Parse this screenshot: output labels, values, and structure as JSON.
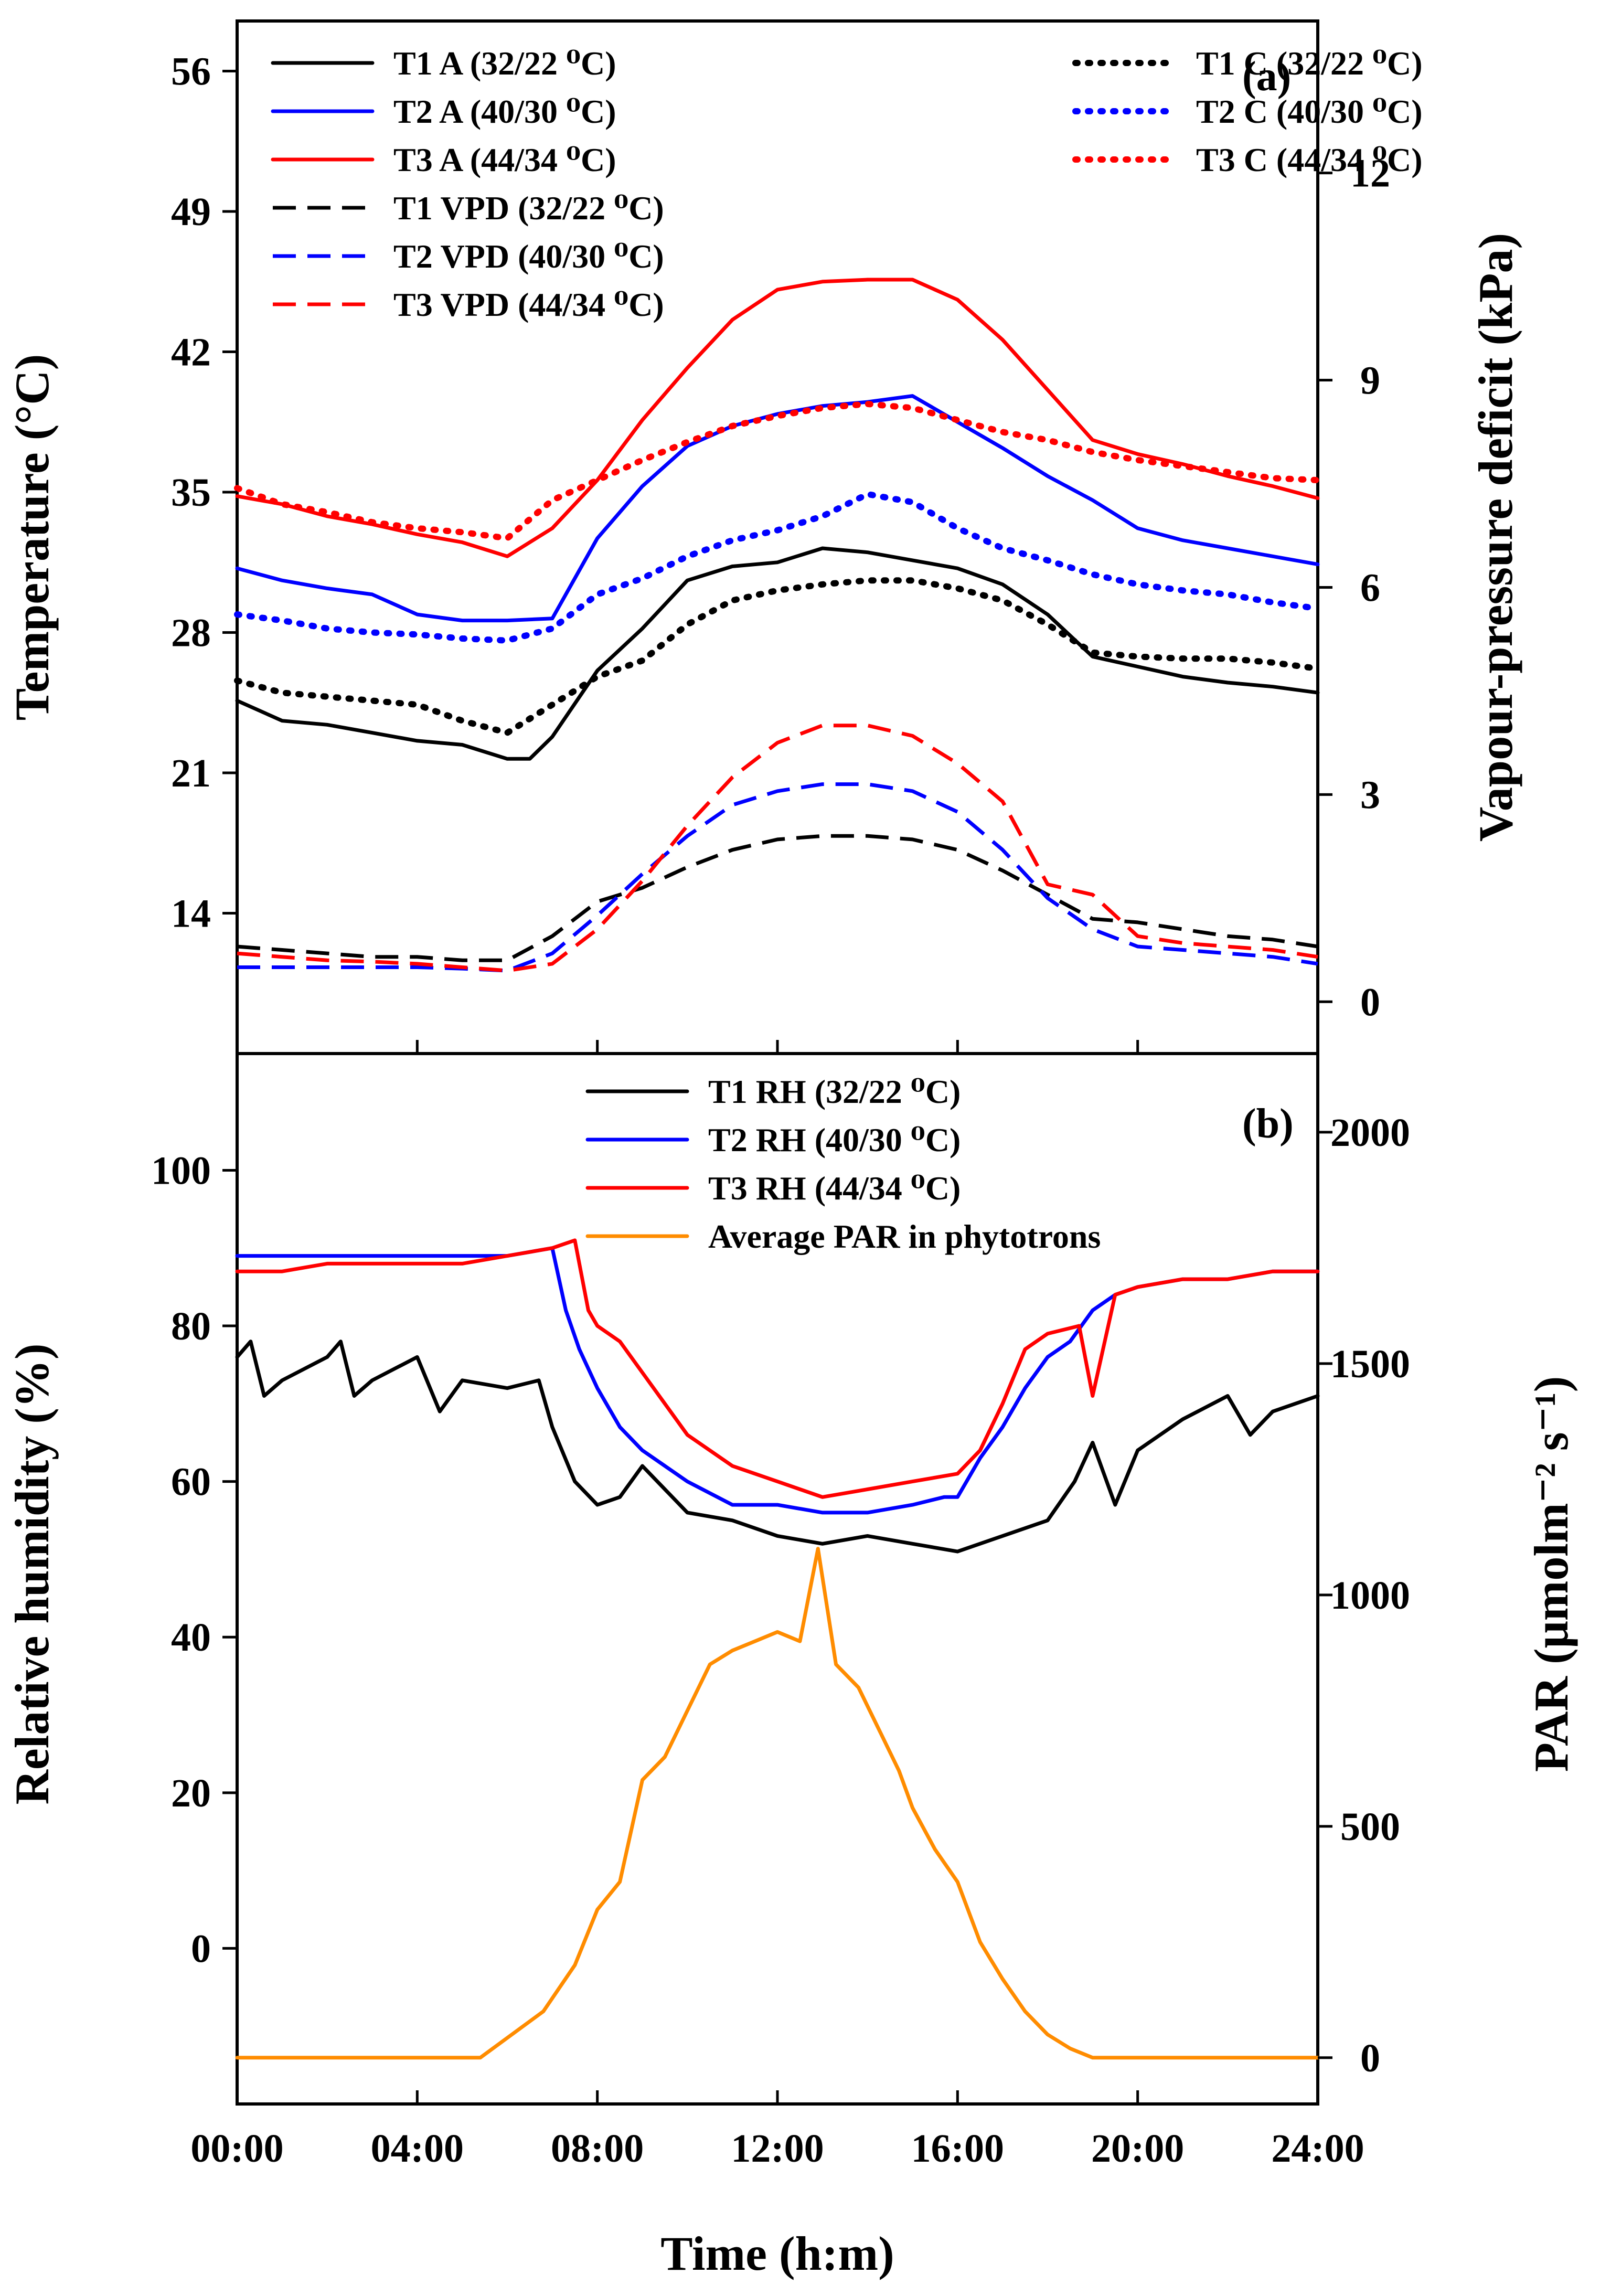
{
  "figure": {
    "x_axis_title": "Time (h:m)"
  },
  "chart_data": [
    {
      "panel_label": "(a)",
      "type": "line",
      "ylabel": "Temperature (°C)",
      "ylabel_right": "Vapour-pressure deficit (kPa)",
      "xlabel": "Time (h:m)",
      "x_ticks": [
        "00:00",
        "04:00",
        "08:00",
        "12:00",
        "16:00",
        "20:00",
        "24:00"
      ],
      "xlim": [
        0,
        24
      ],
      "ylim": [
        7,
        58.5
      ],
      "y_ticks": [
        14,
        21,
        28,
        35,
        42,
        49,
        56
      ],
      "ylim_right": [
        -0.75,
        14.2
      ],
      "y_ticks_right": [
        0,
        3,
        6,
        9,
        12
      ],
      "grid": false,
      "legend_position": "top",
      "colors": {
        "T1": "#000000",
        "T2": "#0000ff",
        "T3": "#ff0000"
      },
      "series": [
        {
          "name": "T1 A (32/22 ⁰C)",
          "axis": "left",
          "color": "#000000",
          "style": "solid",
          "x": [
            0,
            1,
            2,
            3,
            4,
            5,
            6,
            6.5,
            7,
            8,
            9,
            10,
            11,
            12,
            13,
            14,
            15,
            16,
            17,
            18,
            19,
            20,
            21,
            22,
            23,
            24
          ],
          "y": [
            24.6,
            23.6,
            23.4,
            23,
            22.6,
            22.4,
            21.7,
            21.7,
            22.8,
            26.1,
            28.2,
            30.6,
            31.3,
            31.5,
            32.2,
            32,
            31.6,
            31.2,
            30.4,
            28.9,
            26.8,
            26.3,
            25.8,
            25.5,
            25.3,
            25
          ]
        },
        {
          "name": "T2 A (40/30 ⁰C)",
          "axis": "left",
          "color": "#0000ff",
          "style": "solid",
          "x": [
            0,
            1,
            2,
            3,
            4,
            5,
            6,
            7,
            8,
            9,
            10,
            11,
            12,
            13,
            14,
            15,
            16,
            17,
            18,
            19,
            20,
            21,
            22,
            23,
            24
          ],
          "y": [
            31.2,
            30.6,
            30.2,
            29.9,
            28.9,
            28.6,
            28.6,
            28.7,
            32.7,
            35.3,
            37.3,
            38.3,
            38.9,
            39.3,
            39.5,
            39.8,
            38.5,
            37.2,
            35.8,
            34.6,
            33.2,
            32.6,
            32.2,
            31.8,
            31.4
          ]
        },
        {
          "name": "T3 A (44/34 ⁰C)",
          "axis": "left",
          "color": "#ff0000",
          "style": "solid",
          "x": [
            0,
            1,
            2,
            3,
            4,
            5,
            6,
            7,
            8,
            9,
            10,
            11,
            12,
            13,
            14,
            15,
            16,
            17,
            18,
            19,
            20,
            21,
            22,
            23,
            24
          ],
          "y": [
            34.8,
            34.4,
            33.8,
            33.4,
            32.9,
            32.5,
            31.8,
            33.2,
            35.6,
            38.6,
            41.2,
            43.6,
            45.1,
            45.5,
            45.6,
            45.6,
            44.6,
            42.6,
            40.1,
            37.6,
            36.9,
            36.4,
            35.8,
            35.3,
            34.7
          ]
        },
        {
          "name": "T1 C (32/22 ⁰C)",
          "axis": "left",
          "color": "#000000",
          "style": "dotted",
          "x": [
            0,
            1,
            2,
            3,
            4,
            5,
            6,
            7,
            8,
            9,
            10,
            11,
            12,
            13,
            14,
            15,
            16,
            17,
            18,
            19,
            20,
            21,
            22,
            23,
            24
          ],
          "y": [
            25.6,
            25,
            24.8,
            24.6,
            24.4,
            23.6,
            23,
            24.4,
            25.8,
            26.6,
            28.4,
            29.6,
            30.1,
            30.4,
            30.6,
            30.6,
            30.2,
            29.6,
            28.4,
            27,
            26.8,
            26.7,
            26.7,
            26.5,
            26.2
          ]
        },
        {
          "name": "T2 C (40/30 ⁰C)",
          "axis": "left",
          "color": "#0000ff",
          "style": "dotted",
          "x": [
            0,
            1,
            2,
            3,
            4,
            5,
            6,
            7,
            8,
            9,
            10,
            11,
            12,
            13,
            14,
            15,
            16,
            17,
            18,
            19,
            20,
            21,
            22,
            23,
            24
          ],
          "y": [
            28.9,
            28.6,
            28.2,
            28,
            27.9,
            27.7,
            27.6,
            28.2,
            29.9,
            30.7,
            31.8,
            32.6,
            33.1,
            33.8,
            34.9,
            34.5,
            33.2,
            32.2,
            31.6,
            30.9,
            30.4,
            30.1,
            29.9,
            29.5,
            29.2
          ]
        },
        {
          "name": "T3 C (44/34 ⁰C)",
          "axis": "left",
          "color": "#ff0000",
          "style": "dotted",
          "x": [
            0,
            1,
            2,
            3,
            4,
            5,
            6,
            7,
            8,
            9,
            10,
            11,
            12,
            13,
            14,
            15,
            16,
            17,
            18,
            19,
            20,
            21,
            22,
            23,
            24
          ],
          "y": [
            35.2,
            34.4,
            34,
            33.5,
            33.2,
            33,
            32.7,
            34.6,
            35.6,
            36.6,
            37.5,
            38.3,
            38.8,
            39.2,
            39.4,
            39.2,
            38.6,
            38,
            37.6,
            37,
            36.6,
            36.3,
            36,
            35.7,
            35.6
          ]
        },
        {
          "name": "T1 VPD (32/22 ⁰C)",
          "axis": "right",
          "color": "#000000",
          "style": "dashed",
          "x": [
            0,
            1,
            2,
            3,
            4,
            5,
            6,
            7,
            8,
            9,
            10,
            11,
            12,
            13,
            14,
            15,
            16,
            17,
            18,
            19,
            20,
            21,
            22,
            23,
            24
          ],
          "y": [
            0.8,
            0.75,
            0.7,
            0.65,
            0.65,
            0.6,
            0.6,
            0.95,
            1.45,
            1.65,
            1.95,
            2.2,
            2.35,
            2.4,
            2.4,
            2.35,
            2.2,
            1.9,
            1.55,
            1.2,
            1.15,
            1.05,
            0.95,
            0.9,
            0.8
          ]
        },
        {
          "name": "T2 VPD (40/30 ⁰C)",
          "axis": "right",
          "color": "#0000ff",
          "style": "dashed",
          "x": [
            0,
            1,
            2,
            3,
            4,
            5,
            6,
            7,
            8,
            9,
            10,
            11,
            12,
            13,
            14,
            15,
            16,
            17,
            18,
            19,
            20,
            21,
            22,
            23,
            24
          ],
          "y": [
            0.5,
            0.5,
            0.5,
            0.5,
            0.5,
            0.48,
            0.45,
            0.7,
            1.25,
            1.85,
            2.4,
            2.85,
            3.05,
            3.15,
            3.15,
            3.05,
            2.75,
            2.2,
            1.5,
            1.05,
            0.8,
            0.75,
            0.7,
            0.65,
            0.55
          ]
        },
        {
          "name": "T3 VPD (44/34 ⁰C)",
          "axis": "right",
          "color": "#ff0000",
          "style": "dashed",
          "x": [
            0,
            1,
            2,
            3,
            4,
            5,
            6,
            7,
            8,
            9,
            10,
            11,
            12,
            13,
            14,
            15,
            16,
            17,
            18,
            19,
            20,
            21,
            22,
            23,
            24
          ],
          "y": [
            0.7,
            0.65,
            0.6,
            0.58,
            0.55,
            0.5,
            0.45,
            0.55,
            1.05,
            1.75,
            2.55,
            3.25,
            3.75,
            4,
            4,
            3.85,
            3.45,
            2.9,
            1.7,
            1.55,
            0.95,
            0.85,
            0.8,
            0.75,
            0.65
          ]
        }
      ]
    },
    {
      "panel_label": "(b)",
      "type": "line",
      "ylabel": "Relative humidity (%)",
      "ylabel_right": "PAR (μmolm⁻² s⁻¹)",
      "xlabel": "Time (h:m)",
      "x_ticks": [
        "00:00",
        "04:00",
        "08:00",
        "12:00",
        "16:00",
        "20:00",
        "24:00"
      ],
      "xlim": [
        0,
        24
      ],
      "ylim": [
        -20,
        115
      ],
      "y_ticks": [
        0,
        20,
        40,
        60,
        80,
        100
      ],
      "ylim_right": [
        -100,
        2170
      ],
      "y_ticks_right": [
        0,
        500,
        1000,
        1500,
        2000
      ],
      "grid": false,
      "legend_position": "top",
      "series": [
        {
          "name": "T1 RH (32/22 ⁰C)",
          "axis": "left",
          "color": "#000000",
          "style": "solid",
          "x": [
            0,
            0.3,
            0.6,
            1,
            2,
            2.3,
            2.6,
            3,
            4,
            4.5,
            5,
            6,
            6.7,
            7,
            7.5,
            8,
            8.5,
            9,
            10,
            11,
            12,
            13,
            14,
            15,
            16,
            17,
            18,
            18.6,
            19,
            19.5,
            20,
            21,
            22,
            22.5,
            23,
            24
          ],
          "y": [
            76,
            78,
            71,
            73,
            76,
            78,
            71,
            73,
            76,
            69,
            73,
            72,
            73,
            67,
            60,
            57,
            58,
            62,
            56,
            55,
            53,
            52,
            53,
            52,
            51,
            53,
            55,
            60,
            65,
            57,
            64,
            68,
            71,
            66,
            69,
            71
          ]
        },
        {
          "name": "T2 RH (40/30 ⁰C)",
          "axis": "left",
          "color": "#0000ff",
          "style": "solid",
          "x": [
            0,
            1,
            2,
            3,
            4,
            5,
            6,
            7,
            7.3,
            7.6,
            8,
            8.5,
            9,
            10,
            11,
            12,
            13,
            14,
            15,
            15.7,
            16,
            16.5,
            17,
            17.5,
            18,
            18.5,
            19,
            19.5,
            20,
            21,
            22,
            23,
            24
          ],
          "y": [
            89,
            89,
            89,
            89,
            89,
            89,
            89,
            90,
            82,
            77,
            72,
            67,
            64,
            60,
            57,
            57,
            56,
            56,
            57,
            58,
            58,
            63,
            67,
            72,
            76,
            78,
            82,
            84,
            85,
            86,
            86,
            87,
            87
          ]
        },
        {
          "name": "T3 RH (44/34 ⁰C)",
          "axis": "left",
          "color": "#ff0000",
          "style": "solid",
          "x": [
            0,
            1,
            2,
            3,
            4,
            5,
            6,
            7,
            7.5,
            7.8,
            8,
            8.5,
            9,
            10,
            11,
            12,
            13,
            14,
            15,
            16,
            16.5,
            17,
            17.5,
            18,
            18.7,
            19,
            19.5,
            20,
            21,
            22,
            23,
            24
          ],
          "y": [
            87,
            87,
            88,
            88,
            88,
            88,
            89,
            90,
            91,
            82,
            80,
            78,
            74,
            66,
            62,
            60,
            58,
            59,
            60,
            61,
            64,
            70,
            77,
            79,
            80,
            71,
            84,
            85,
            86,
            86,
            87,
            87
          ]
        },
        {
          "name": "Average PAR in phytotrons",
          "axis": "right",
          "color": "#ff8c00",
          "style": "solid",
          "x": [
            0,
            4,
            5.4,
            6.8,
            7.5,
            8,
            8.5,
            9,
            9.5,
            10,
            10.5,
            11,
            11.5,
            12,
            12.5,
            12.9,
            13.3,
            13.8,
            14.3,
            14.7,
            15,
            15.5,
            16,
            16.5,
            17,
            17.5,
            18,
            18.5,
            19,
            20,
            21,
            22,
            23,
            24
          ],
          "y": [
            0,
            0,
            0,
            100,
            200,
            320,
            380,
            600,
            650,
            750,
            850,
            880,
            900,
            920,
            900,
            1100,
            850,
            800,
            700,
            620,
            540,
            450,
            380,
            250,
            170,
            100,
            50,
            20,
            0,
            0,
            0,
            0,
            0,
            0
          ]
        }
      ]
    }
  ]
}
